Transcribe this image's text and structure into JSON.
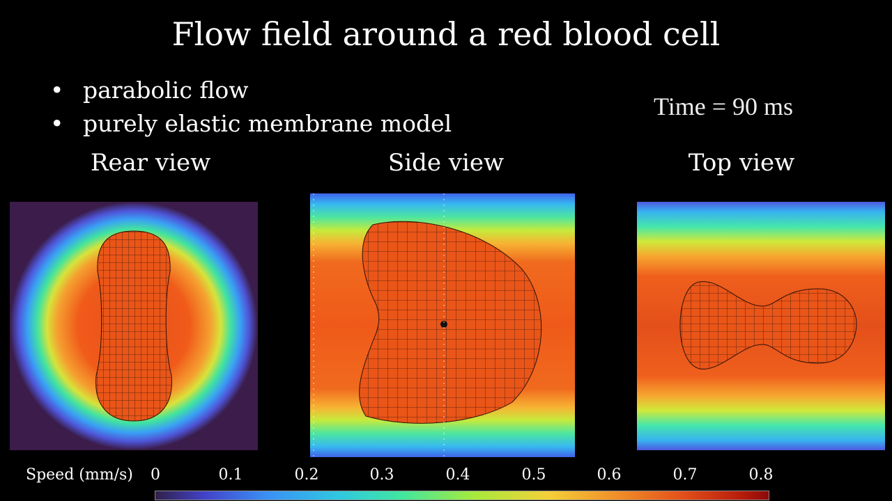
{
  "title": "Flow field around a red blood cell",
  "bullets": [
    "parabolic flow",
    "purely elastic membrane model"
  ],
  "time_label": "Time = 90 ms",
  "views": [
    {
      "label": "Rear view"
    },
    {
      "label": "Side view"
    },
    {
      "label": "Top view"
    }
  ],
  "colorbar": {
    "label": "Speed (mm/s)",
    "ticks": [
      "0",
      "0.1",
      "0.2",
      "0.3",
      "0.4",
      "0.5",
      "0.6",
      "0.7",
      "0.8"
    ],
    "range": [
      0,
      0.81
    ],
    "colormap": [
      "#30204a",
      "#4242c8",
      "#3a8ff5",
      "#40e6a0",
      "#a6ea3c",
      "#f4d038",
      "#f08a28",
      "#e2501a",
      "#8a0a0a"
    ]
  }
}
